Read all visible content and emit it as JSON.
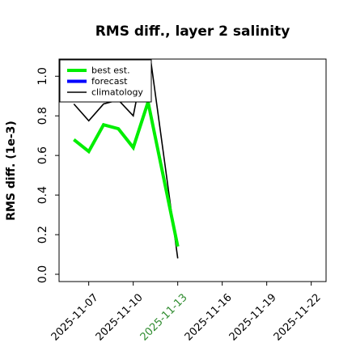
{
  "chart_data": {
    "type": "line",
    "title": "RMS diff., layer 2 salinity",
    "ylabel": "RMS diff. (1e-3)",
    "xlabel": "",
    "ylim": [
      0,
      1.05
    ],
    "xlim": [
      "2025-11-05",
      "2025-11-23"
    ],
    "yticks": [
      0.0,
      0.2,
      0.4,
      0.6,
      0.8,
      1.0
    ],
    "ytick_labels": [
      "0.0",
      "0.2",
      "0.4",
      "0.6",
      "0.8",
      "1.0"
    ],
    "xticks": [
      "2025-11-07",
      "2025-11-10",
      "2025-11-13",
      "2025-11-16",
      "2025-11-19",
      "2025-11-22"
    ],
    "xtick_labels": [
      "2025-11-07",
      "2025-11-10",
      "2025-11-13",
      "2025-11-16",
      "2025-11-19",
      "2025-11-22"
    ],
    "highlight_tick": "2025-11-13",
    "highlight_color": "#2e8b2e",
    "grid": false,
    "legend_position": "top-left",
    "series": [
      {
        "name": "best est.",
        "color": "#00ee00",
        "x": [
          "2025-11-06",
          "2025-11-07",
          "2025-11-08",
          "2025-11-09",
          "2025-11-10",
          "2025-11-11",
          "2025-11-13"
        ],
        "y": [
          0.68,
          0.62,
          0.755,
          0.735,
          0.64,
          0.87,
          0.14
        ]
      },
      {
        "name": "forecast",
        "color": "#0000ff",
        "x": [],
        "y": []
      },
      {
        "name": "climatology",
        "color": "#000000",
        "x": [
          "2025-11-06",
          "2025-11-07",
          "2025-11-08",
          "2025-11-09",
          "2025-11-10",
          "2025-11-11",
          "2025-11-13"
        ],
        "y": [
          0.86,
          0.775,
          0.86,
          0.88,
          0.8,
          1.18,
          0.08
        ]
      }
    ]
  }
}
